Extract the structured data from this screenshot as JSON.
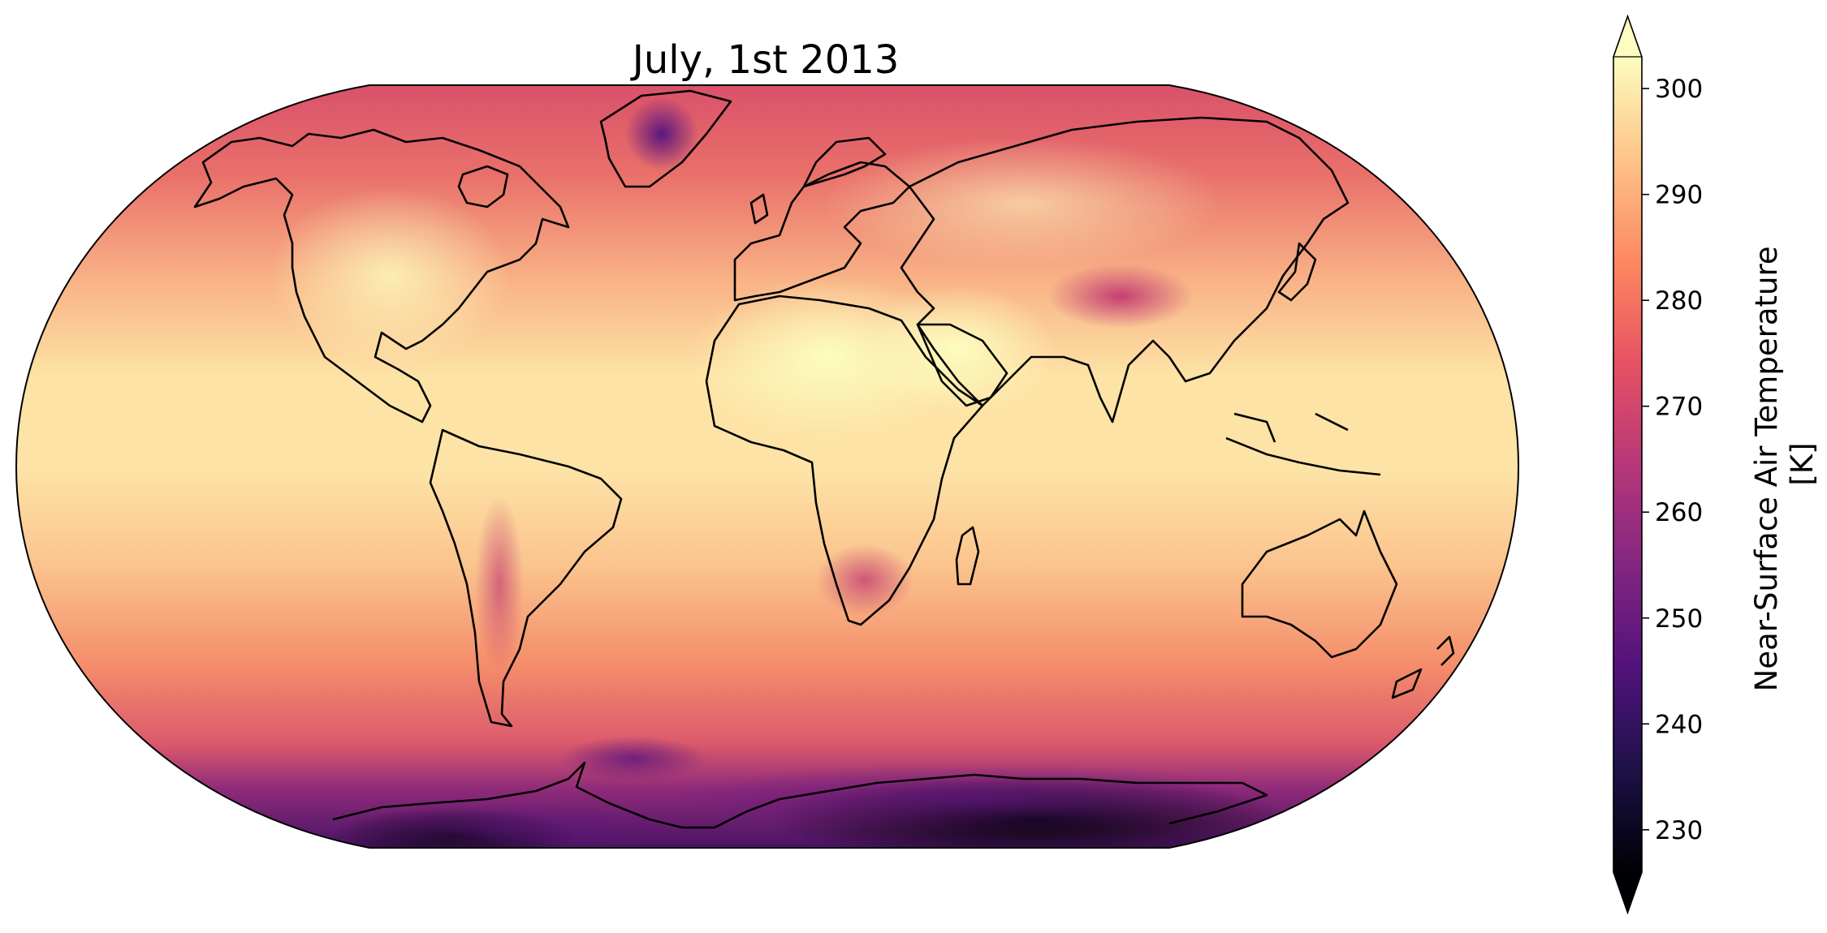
{
  "figure": {
    "title": "July, 1st 2013",
    "projection": "Robinson",
    "colormap": "magma",
    "background": "#ffffff"
  },
  "colorbar": {
    "label_line1": "Near-Surface Air Temperature",
    "label_line2": "[K]",
    "vmin": 226,
    "vmax": 303,
    "extend": "both",
    "ticks": [
      230,
      240,
      250,
      260,
      270,
      280,
      290,
      300
    ],
    "tick_labels": [
      "230",
      "240",
      "250",
      "260",
      "270",
      "280",
      "290",
      "300"
    ]
  },
  "colormap_stops": [
    "#000004",
    "#1d1147",
    "#51127c",
    "#822681",
    "#b73779",
    "#e75263",
    "#fc8961",
    "#fec488",
    "#fcfdbf"
  ]
}
